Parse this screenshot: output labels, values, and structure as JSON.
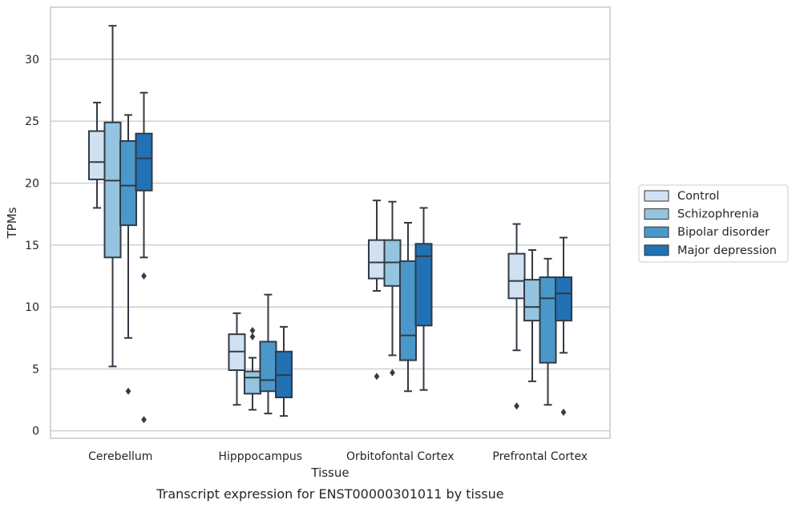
{
  "chart_data": {
    "type": "box",
    "title": "",
    "caption": "Transcript expression for ENST00000301011 by tissue",
    "xlabel": "Tissue",
    "ylabel": "TPMs",
    "ylim": [
      -0.6,
      34.2
    ],
    "yticks": [
      0,
      5,
      10,
      15,
      20,
      25,
      30
    ],
    "grid": true,
    "legend_position": "right, outside plot",
    "categories": [
      "Cerebellum",
      "Hipppocampus",
      "Orbitofontal Cortex",
      "Prefrontal Cortex"
    ],
    "series": [
      {
        "name": "Control",
        "color": "#d0e1f2",
        "boxes": [
          {
            "whisker_low": 18.0,
            "q1": 20.3,
            "median": 21.7,
            "q3": 24.2,
            "whisker_high": 26.5,
            "outliers": []
          },
          {
            "whisker_low": 2.1,
            "q1": 4.9,
            "median": 6.4,
            "q3": 7.8,
            "whisker_high": 9.5,
            "outliers": []
          },
          {
            "whisker_low": 11.3,
            "q1": 12.3,
            "median": 13.6,
            "q3": 15.4,
            "whisker_high": 18.6,
            "outliers": [
              4.4
            ]
          },
          {
            "whisker_low": 6.5,
            "q1": 10.7,
            "median": 12.1,
            "q3": 14.3,
            "whisker_high": 16.7,
            "outliers": [
              2.0
            ]
          }
        ]
      },
      {
        "name": "Schizophrenia",
        "color": "#94c4df",
        "boxes": [
          {
            "whisker_low": 5.2,
            "q1": 14.0,
            "median": 20.2,
            "q3": 24.9,
            "whisker_high": 32.7,
            "outliers": []
          },
          {
            "whisker_low": 1.7,
            "q1": 3.0,
            "median": 4.3,
            "q3": 4.8,
            "whisker_high": 5.9,
            "outliers": [
              7.6,
              8.1
            ]
          },
          {
            "whisker_low": 6.1,
            "q1": 11.7,
            "median": 13.6,
            "q3": 15.4,
            "whisker_high": 18.5,
            "outliers": [
              4.7
            ]
          },
          {
            "whisker_low": 4.0,
            "q1": 8.9,
            "median": 10.0,
            "q3": 12.2,
            "whisker_high": 14.6,
            "outliers": []
          }
        ]
      },
      {
        "name": "Bipolar disorder",
        "color": "#4a98c9",
        "boxes": [
          {
            "whisker_low": 7.5,
            "q1": 16.6,
            "median": 19.8,
            "q3": 23.4,
            "whisker_high": 25.5,
            "outliers": [
              3.2
            ]
          },
          {
            "whisker_low": 1.4,
            "q1": 3.2,
            "median": 4.1,
            "q3": 7.2,
            "whisker_high": 11.0,
            "outliers": []
          },
          {
            "whisker_low": 3.2,
            "q1": 5.7,
            "median": 7.7,
            "q3": 13.7,
            "whisker_high": 16.8,
            "outliers": []
          },
          {
            "whisker_low": 2.1,
            "q1": 5.5,
            "median": 10.7,
            "q3": 12.4,
            "whisker_high": 13.9,
            "outliers": []
          }
        ]
      },
      {
        "name": "Major depression",
        "color": "#2171b5",
        "boxes": [
          {
            "whisker_low": 14.0,
            "q1": 19.4,
            "median": 22.0,
            "q3": 24.0,
            "whisker_high": 27.3,
            "outliers": [
              12.5,
              0.9
            ]
          },
          {
            "whisker_low": 1.2,
            "q1": 2.7,
            "median": 4.5,
            "q3": 6.4,
            "whisker_high": 8.4,
            "outliers": []
          },
          {
            "whisker_low": 3.3,
            "q1": 8.5,
            "median": 14.1,
            "q3": 15.1,
            "whisker_high": 18.0,
            "outliers": []
          },
          {
            "whisker_low": 6.3,
            "q1": 8.9,
            "median": 11.1,
            "q3": 12.4,
            "whisker_high": 15.6,
            "outliers": [
              1.5
            ]
          }
        ]
      }
    ]
  }
}
